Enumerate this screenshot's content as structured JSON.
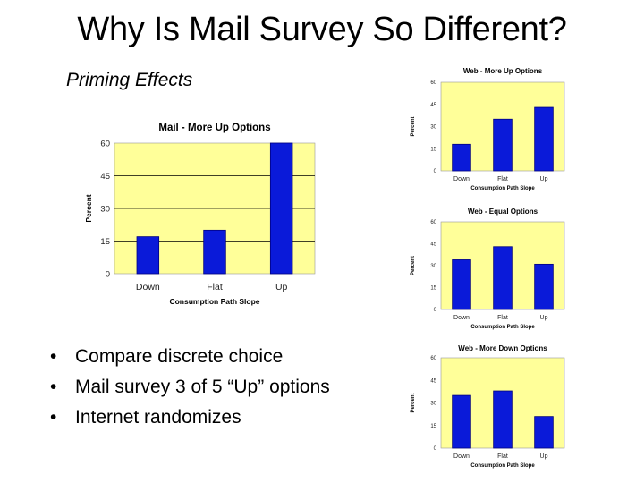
{
  "slide": {
    "title": "Why Is Mail Survey So Different?",
    "subtitle": "Priming Effects",
    "bullets": [
      "Compare discrete choice",
      "Mail survey 3 of 5 “Up” options",
      "Internet randomizes"
    ]
  },
  "colors": {
    "plot_background": "#FFFF99",
    "bar_fill": "#0A1AD9",
    "bar_stroke": "#000080",
    "gridline": "#000000"
  },
  "chart_data": [
    {
      "id": "mail",
      "type": "bar",
      "title": "Mail - More Up Options",
      "xlabel": "Consumption Path Slope",
      "ylabel": "Percent",
      "categories": [
        "Down",
        "Flat",
        "Up"
      ],
      "values": [
        17,
        20,
        60
      ],
      "yticks": [
        "0",
        "15",
        "30",
        "45",
        "60"
      ],
      "ylim": [
        0,
        60
      ],
      "grid": true
    },
    {
      "id": "web-up",
      "type": "bar",
      "title": "Web - More Up Options",
      "xlabel": "Consumption Path Slope",
      "ylabel": "Percent",
      "categories": [
        "Down",
        "Flat",
        "Up"
      ],
      "values": [
        18,
        35,
        43
      ],
      "yticks": [
        "0",
        "15",
        "30",
        "45",
        "60"
      ],
      "ylim": [
        0,
        60
      ],
      "grid": false
    },
    {
      "id": "web-equal",
      "type": "bar",
      "title": "Web - Equal Options",
      "xlabel": "Consumption Path Slope",
      "ylabel": "Percent",
      "categories": [
        "Down",
        "Flat",
        "Up"
      ],
      "values": [
        34,
        43,
        31
      ],
      "yticks": [
        "0",
        "15",
        "30",
        "45",
        "60"
      ],
      "ylim": [
        0,
        60
      ],
      "grid": false
    },
    {
      "id": "web-down",
      "type": "bar",
      "title": "Web - More Down Options",
      "xlabel": "Consumption Path Slope",
      "ylabel": "Percent",
      "categories": [
        "Down",
        "Flat",
        "Up"
      ],
      "values": [
        35,
        38,
        21
      ],
      "yticks": [
        "0",
        "15",
        "30",
        "45",
        "60"
      ],
      "ylim": [
        0,
        60
      ],
      "grid": false
    }
  ]
}
